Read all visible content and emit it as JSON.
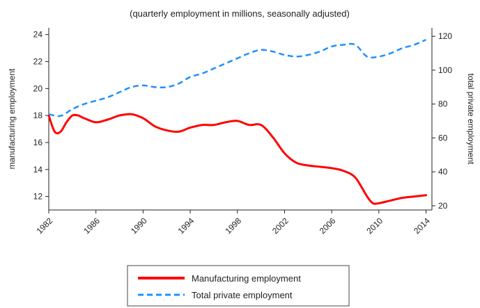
{
  "chart_data": {
    "type": "line",
    "subtitle": "(quarterly employment in millions, seasonally adjusted)",
    "ylabel_left": "manufacturing employment",
    "ylabel_right": "total private employment",
    "xlim": [
      1982,
      2014.5
    ],
    "ylim_left": [
      11,
      24.5
    ],
    "ylim_right": [
      17.5,
      125
    ],
    "x_ticks": [
      1982,
      1986,
      1990,
      1994,
      1998,
      2002,
      2006,
      2010,
      2014
    ],
    "y_left_ticks": [
      12,
      14,
      16,
      18,
      20,
      22,
      24
    ],
    "y_right_ticks": [
      20,
      40,
      60,
      80,
      100,
      120
    ],
    "grid": false,
    "legend_position": "bottom",
    "series": [
      {
        "name": "Manufacturing employment",
        "axis": "left",
        "color": "#ff0000",
        "style": "solid",
        "x": [
          1982,
          1982.5,
          1983,
          1983.5,
          1984,
          1984.5,
          1985,
          1986,
          1987,
          1988,
          1989,
          1990,
          1991,
          1992,
          1993,
          1994,
          1995,
          1996,
          1997,
          1998,
          1999,
          2000,
          2001,
          2002,
          2003,
          2004,
          2005,
          2006,
          2007,
          2008,
          2009,
          2009.5,
          2010,
          2011,
          2012,
          2013,
          2014
        ],
        "y": [
          18.0,
          16.8,
          16.8,
          17.5,
          18.0,
          18.0,
          17.8,
          17.5,
          17.7,
          18.0,
          18.1,
          17.8,
          17.2,
          16.9,
          16.8,
          17.1,
          17.3,
          17.3,
          17.5,
          17.6,
          17.3,
          17.3,
          16.4,
          15.2,
          14.5,
          14.3,
          14.2,
          14.1,
          13.9,
          13.4,
          12.0,
          11.5,
          11.5,
          11.7,
          11.9,
          12.0,
          12.1
        ]
      },
      {
        "name": "Total private employment",
        "axis": "right",
        "color": "#1e90ff",
        "style": "dashed",
        "x": [
          1982,
          1983,
          1984,
          1985,
          1986,
          1987,
          1988,
          1989,
          1990,
          1991,
          1992,
          1993,
          1994,
          1995,
          1996,
          1997,
          1998,
          1999,
          2000,
          2001,
          2002,
          2003,
          2004,
          2005,
          2006,
          2007,
          2008,
          2009,
          2010,
          2011,
          2012,
          2013,
          2014
        ],
        "y": [
          74,
          73,
          77,
          80,
          82,
          84,
          87,
          90,
          91,
          90,
          90,
          92,
          96,
          98,
          101,
          104,
          107,
          110,
          112,
          111,
          109,
          108,
          109,
          111,
          114,
          115,
          115,
          108,
          108,
          110,
          113,
          115,
          118
        ]
      }
    ]
  }
}
